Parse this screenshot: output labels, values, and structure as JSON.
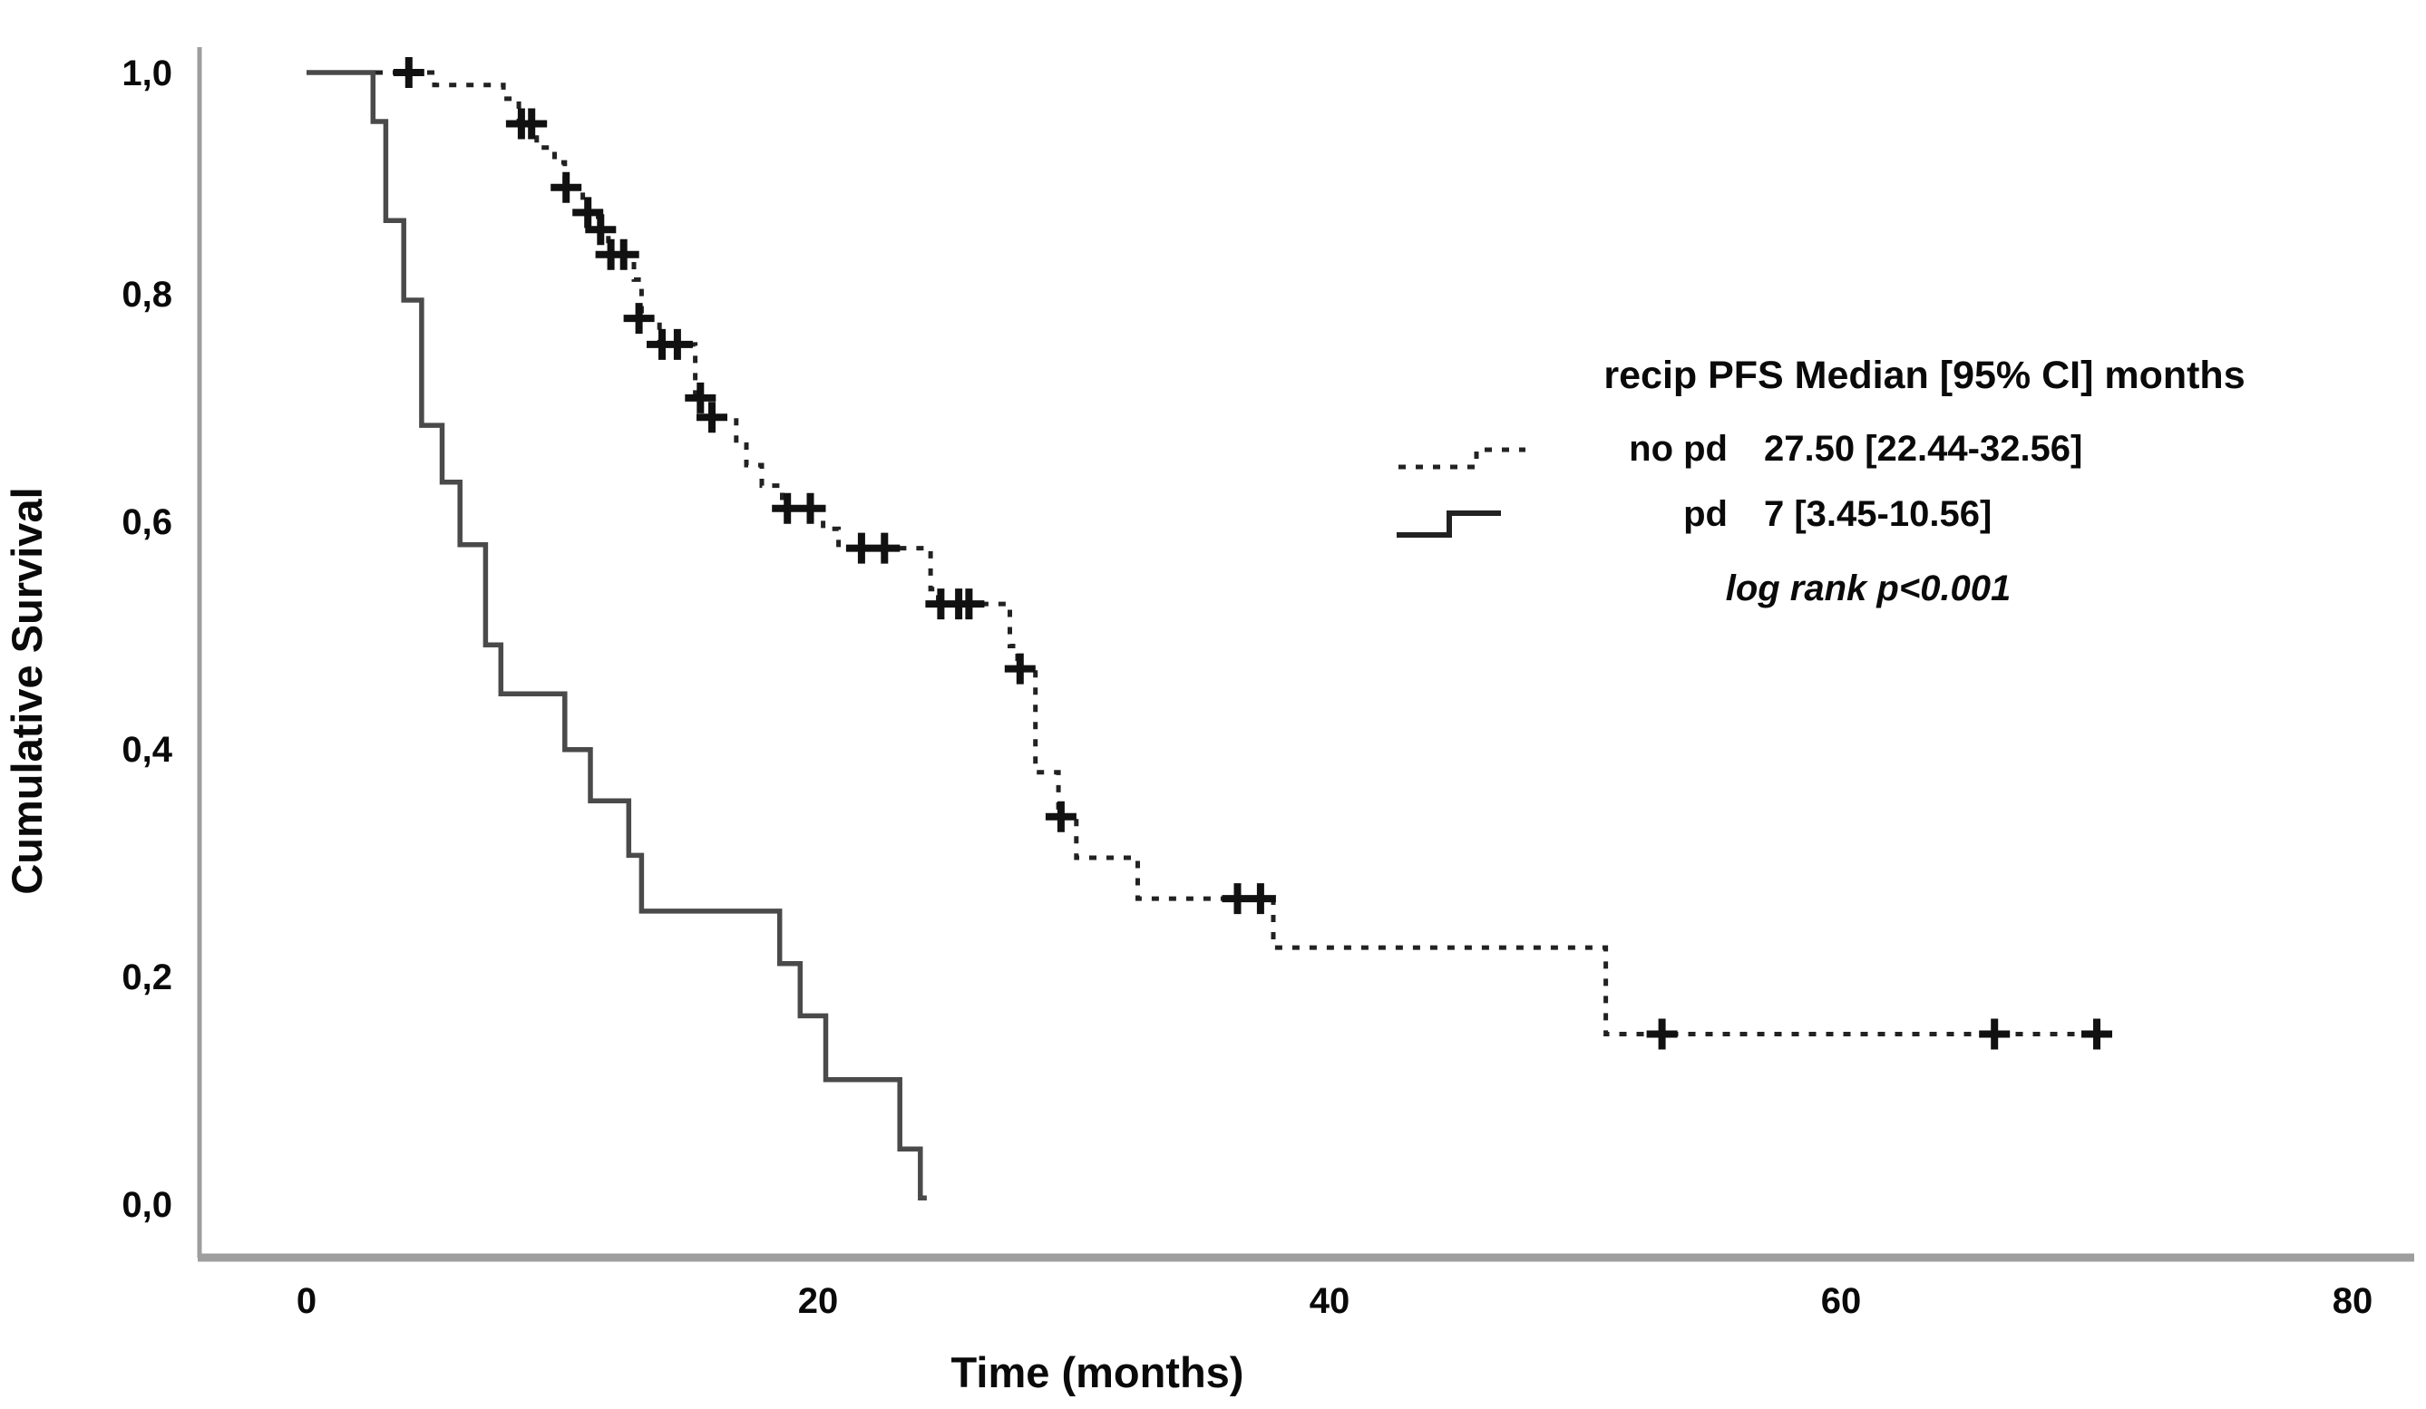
{
  "figure": {
    "y_axis_title": "Cumulative Survival",
    "x_axis_title": "Time (months)"
  },
  "axes": {
    "x": {
      "ticks": [
        "0",
        "20",
        "40",
        "60",
        "80"
      ],
      "range": [
        0,
        80
      ]
    },
    "y": {
      "ticks": [
        "0,0",
        "0,2",
        "0,4",
        "0,6",
        "0,8",
        "1,0"
      ],
      "range": [
        0.0,
        1.0
      ]
    }
  },
  "legend": {
    "title": "recip PFS Median [95% CI] months",
    "entries": [
      {
        "label": "no pd",
        "stats": "27.50 [22.44-32.56]",
        "line_style": "dashed"
      },
      {
        "label": "pd",
        "stats": "7 [3.45-10.56]",
        "line_style": "solid"
      }
    ],
    "pvalue": "log rank p<0.001"
  },
  "colors": {
    "curve_dashed": "#222222",
    "curve_solid": "#4a4a4a",
    "axis": "#9e9e9e",
    "text": "#0a0a0a",
    "background": "#ffffff"
  },
  "chart_data": {
    "type": "line",
    "subtype": "kaplan-meier-step",
    "title": "recip PFS Median [95% CI] months",
    "xlabel": "Time (months)",
    "ylabel": "Cumulative Survival",
    "xlim": [
      0,
      80
    ],
    "ylim": [
      0.0,
      1.0
    ],
    "grid": false,
    "legend_position": "right-upper",
    "series": [
      {
        "name": "no pd",
        "median": "27.50",
        "ci95": "22.44-32.56",
        "style": "dashed",
        "start": [
          0,
          1.0
        ],
        "steps": [
          [
            5.0,
            0.989
          ],
          [
            7.7,
            0.977
          ],
          [
            8.3,
            0.955
          ],
          [
            9.0,
            0.934
          ],
          [
            9.7,
            0.921
          ],
          [
            10.1,
            0.899
          ],
          [
            10.8,
            0.877
          ],
          [
            11.4,
            0.862
          ],
          [
            11.8,
            0.84
          ],
          [
            12.8,
            0.818
          ],
          [
            13.1,
            0.784
          ],
          [
            13.8,
            0.761
          ],
          [
            15.2,
            0.714
          ],
          [
            15.8,
            0.697
          ],
          [
            16.8,
            0.673
          ],
          [
            17.2,
            0.655
          ],
          [
            17.8,
            0.637
          ],
          [
            18.6,
            0.617
          ],
          [
            20.2,
            0.599
          ],
          [
            20.8,
            0.582
          ],
          [
            24.4,
            0.546
          ],
          [
            24.7,
            0.533
          ],
          [
            27.5,
            0.496
          ],
          [
            27.8,
            0.476
          ],
          [
            28.5,
            0.385
          ],
          [
            29.4,
            0.346
          ],
          [
            30.1,
            0.31
          ],
          [
            32.5,
            0.274
          ],
          [
            37.8,
            0.231
          ],
          [
            50.8,
            0.155
          ]
        ],
        "end_time": 70.5,
        "censors": [
          [
            4.0,
            1.0
          ],
          [
            8.4,
            0.955
          ],
          [
            8.8,
            0.955
          ],
          [
            10.15,
            0.899
          ],
          [
            11.0,
            0.877
          ],
          [
            11.5,
            0.862
          ],
          [
            11.9,
            0.84
          ],
          [
            12.4,
            0.84
          ],
          [
            13.0,
            0.784
          ],
          [
            13.9,
            0.761
          ],
          [
            14.5,
            0.761
          ],
          [
            15.4,
            0.714
          ],
          [
            15.85,
            0.697
          ],
          [
            18.8,
            0.617
          ],
          [
            19.7,
            0.617
          ],
          [
            21.7,
            0.582
          ],
          [
            22.6,
            0.582
          ],
          [
            24.8,
            0.533
          ],
          [
            25.5,
            0.533
          ],
          [
            25.9,
            0.533
          ],
          [
            27.9,
            0.476
          ],
          [
            29.5,
            0.346
          ],
          [
            36.4,
            0.274
          ],
          [
            37.3,
            0.274
          ],
          [
            53.0,
            0.155
          ],
          [
            66.0,
            0.155
          ],
          [
            70.0,
            0.155
          ]
        ]
      },
      {
        "name": "pd",
        "median": "7",
        "ci95": "3.45-10.56",
        "style": "solid",
        "start": [
          0,
          1.0
        ],
        "steps": [
          [
            2.6,
            0.957
          ],
          [
            3.1,
            0.87
          ],
          [
            3.8,
            0.8
          ],
          [
            4.5,
            0.69
          ],
          [
            5.3,
            0.64
          ],
          [
            6.0,
            0.585
          ],
          [
            7.0,
            0.497
          ],
          [
            7.6,
            0.454
          ],
          [
            10.1,
            0.405
          ],
          [
            11.1,
            0.36
          ],
          [
            12.6,
            0.312
          ],
          [
            13.1,
            0.263
          ],
          [
            18.5,
            0.217
          ],
          [
            19.3,
            0.171
          ],
          [
            20.3,
            0.115
          ],
          [
            23.2,
            0.054
          ],
          [
            24.0,
            0.011
          ]
        ],
        "end_time": 24.25,
        "censors": []
      }
    ]
  }
}
